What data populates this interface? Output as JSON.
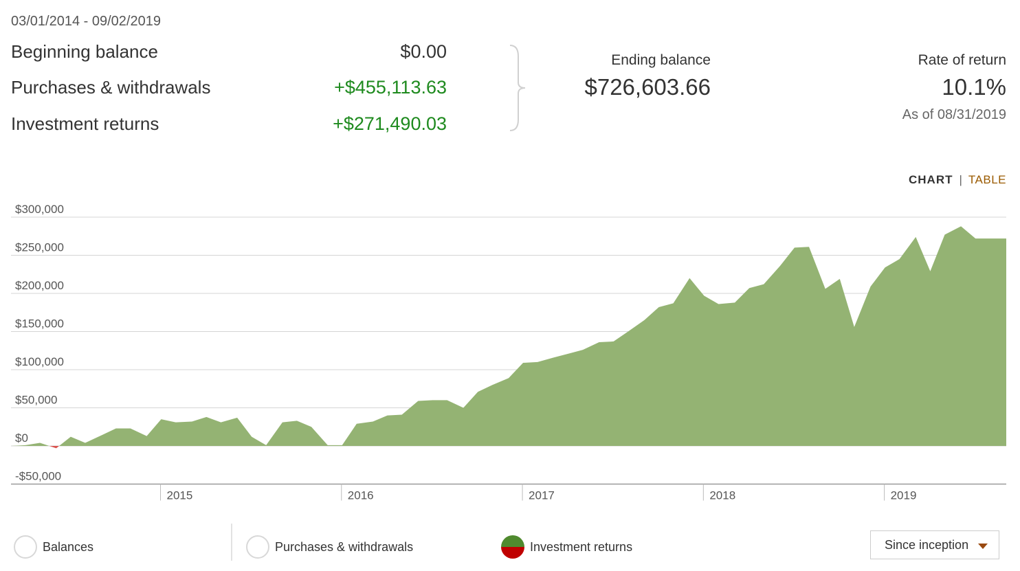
{
  "summary": {
    "date_range": "03/01/2014 - 09/02/2019",
    "beginning_balance": {
      "label": "Beginning balance",
      "value": "$0.00"
    },
    "purchases_withdrawals": {
      "label": "Purchases & withdrawals",
      "value": "+$455,113.63"
    },
    "investment_returns": {
      "label": "Investment returns",
      "value": "+$271,490.03"
    },
    "ending_balance": {
      "label": "Ending balance",
      "value": "$726,603.66"
    },
    "rate_of_return": {
      "label": "Rate of return",
      "value": "10.1%",
      "as_of": "As of 08/31/2019"
    }
  },
  "view_toggle": {
    "chart": "CHART",
    "separator": "|",
    "table": "TABLE",
    "active": "chart"
  },
  "colors": {
    "positive_text": "#1e8a1e",
    "area_positive": "#94b373",
    "area_negative": "#d9534f",
    "grid": "#d5d5d5",
    "toggle_link": "#9a5a00"
  },
  "chart_data": {
    "type": "area",
    "series": [
      {
        "name": "Investment returns",
        "x": [
          2014.17,
          2014.25,
          2014.33,
          2014.42,
          2014.5,
          2014.58,
          2014.67,
          2014.75,
          2014.83,
          2014.92,
          2015.0,
          2015.08,
          2015.17,
          2015.25,
          2015.33,
          2015.42,
          2015.5,
          2015.58,
          2015.67,
          2015.75,
          2015.83,
          2015.92,
          2016.0,
          2016.08,
          2016.17,
          2016.25,
          2016.33,
          2016.42,
          2016.5,
          2016.58,
          2016.67,
          2016.75,
          2016.83,
          2016.92,
          2017.0,
          2017.08,
          2017.17,
          2017.25,
          2017.33,
          2017.42,
          2017.5,
          2017.58,
          2017.67,
          2017.75,
          2017.83,
          2017.92,
          2018.0,
          2018.08,
          2018.17,
          2018.25,
          2018.33,
          2018.42,
          2018.5,
          2018.58,
          2018.67,
          2018.75,
          2018.83,
          2018.92,
          2019.0,
          2019.08,
          2019.17,
          2019.25,
          2019.33,
          2019.42,
          2019.5,
          2019.58,
          2019.67
        ],
        "values": [
          0,
          1000,
          4000,
          -3000,
          12000,
          4000,
          14000,
          23000,
          23000,
          13000,
          35000,
          31000,
          32000,
          38000,
          31000,
          37000,
          12000,
          1000,
          31000,
          33000,
          25000,
          1000,
          1000,
          29000,
          32000,
          40000,
          41000,
          59000,
          60000,
          60000,
          50000,
          71000,
          80000,
          89000,
          109000,
          110000,
          116000,
          121000,
          126000,
          136000,
          137000,
          150000,
          165000,
          182000,
          187000,
          220000,
          197000,
          186000,
          188000,
          207000,
          212000,
          236000,
          260000,
          261000,
          206000,
          219000,
          156000,
          209000,
          234000,
          245000,
          274000,
          229000,
          277000,
          288000,
          272000,
          272000,
          272000
        ]
      }
    ],
    "y_tick_labels": [
      "$300,000",
      "$250,000",
      "$200,000",
      "$150,000",
      "$100,000",
      "$50,000",
      "$0",
      "-$50,000"
    ],
    "y_ticks": [
      300000,
      250000,
      200000,
      150000,
      100000,
      50000,
      0,
      -50000
    ],
    "x_tick_labels": [
      "2015",
      "2016",
      "2017",
      "2018",
      "2019"
    ],
    "x_ticks": [
      2015,
      2016,
      2017,
      2018,
      2019
    ],
    "xlim": [
      2014.17,
      2019.67
    ],
    "ylim": [
      -50000,
      300000
    ],
    "grid": true
  },
  "legend": {
    "items": [
      {
        "label": "Balances",
        "active": false
      },
      {
        "label": "Purchases & withdrawals",
        "active": false
      },
      {
        "label": "Investment returns",
        "active": true
      }
    ]
  },
  "range_select": {
    "value": "Since inception"
  }
}
